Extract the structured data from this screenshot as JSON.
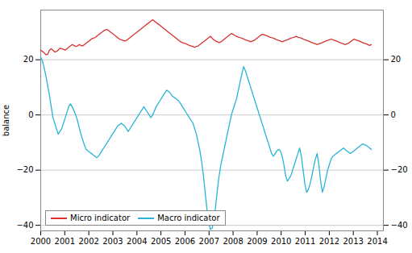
{
  "chart_data": {
    "type": "line",
    "ylabel": "balance",
    "x": [
      2000,
      2000.0728,
      2000.1455,
      2000.2183,
      2000.291,
      2000.3638,
      2000.4365,
      2000.5093,
      2000.582,
      2000.6548,
      2000.7275,
      2000.8003,
      2000.873,
      2000.9458,
      2001.0185,
      2001.0913,
      2001.164,
      2001.2368,
      2001.3095,
      2001.3823,
      2001.455,
      2001.5278,
      2001.6005,
      2001.6733,
      2001.746,
      2001.8188,
      2001.8915,
      2001.9643,
      2002.037,
      2002.1098,
      2002.1825,
      2002.2553,
      2002.328,
      2002.4008,
      2002.4735,
      2002.5463,
      2002.619,
      2002.6918,
      2002.7646,
      2002.8373,
      2002.9101,
      2002.9828,
      2003.0556,
      2003.1283,
      2003.2011,
      2003.2738,
      2003.3466,
      2003.4193,
      2003.4921,
      2003.5648,
      2003.6376,
      2003.7103,
      2003.7831,
      2003.8558,
      2003.9286,
      2004.0013,
      2004.0741,
      2004.1468,
      2004.2196,
      2004.2923,
      2004.3651,
      2004.4378,
      2004.5106,
      2004.5833,
      2004.6561,
      2004.7288,
      2004.8016,
      2004.8743,
      2004.9471,
      2005.0198,
      2005.0926,
      2005.1653,
      2005.2381,
      2005.3108,
      2005.3836,
      2005.4563,
      2005.5291,
      2005.6019,
      2005.6746,
      2005.7474,
      2005.8201,
      2005.8929,
      2005.9656,
      2006.0384,
      2006.1111,
      2006.1839,
      2006.2566,
      2006.3294,
      2006.4021,
      2006.4749,
      2006.5476,
      2006.6204,
      2006.6931,
      2006.7659,
      2006.8386,
      2006.9114,
      2006.9841,
      2007.0569,
      2007.1296,
      2007.2024,
      2007.2751,
      2007.3479,
      2007.4206,
      2007.4934,
      2007.5661,
      2007.6389,
      2007.7116,
      2007.7844,
      2007.8571,
      2007.9299,
      2008.0026,
      2008.0754,
      2008.1481,
      2008.2209,
      2008.2937,
      2008.3664,
      2008.4392,
      2008.5119,
      2008.5847,
      2008.6574,
      2008.7302,
      2008.8029,
      2008.8757,
      2008.9484,
      2009.0212,
      2009.0939,
      2009.1667,
      2009.2394,
      2009.3122,
      2009.3849,
      2009.4577,
      2009.5304,
      2009.6032,
      2009.6759,
      2009.7487,
      2009.8214,
      2009.8942,
      2009.9669,
      2010.0397,
      2010.1124,
      2010.1852,
      2010.2579,
      2010.3307,
      2010.4034,
      2010.4762,
      2010.5489,
      2010.6217,
      2010.6944,
      2010.7672,
      2010.8399,
      2010.9127,
      2010.9854,
      2011.0582,
      2011.131,
      2011.2037,
      2011.2765,
      2011.3492,
      2011.422,
      2011.4947,
      2011.5675,
      2011.6402,
      2011.713,
      2011.7857,
      2011.8585,
      2011.9312,
      2012.004,
      2012.0767,
      2012.1495,
      2012.2222,
      2012.295,
      2012.3677,
      2012.4405,
      2012.5132,
      2012.586,
      2012.6587,
      2012.7315,
      2012.8042,
      2012.877,
      2012.9497,
      2013.0225,
      2013.0952,
      2013.168,
      2013.2407,
      2013.3135,
      2013.3862,
      2013.459,
      2013.5317,
      2013.6045,
      2013.6772,
      2013.75
    ],
    "series": [
      {
        "name": "Micro indicator",
        "color": "#d9322e",
        "values": [
          23.5,
          23.0,
          22.5,
          21.8,
          22.0,
          23.5,
          24.0,
          23.5,
          22.8,
          23.0,
          23.5,
          24.2,
          24.0,
          23.8,
          23.5,
          24.0,
          24.5,
          25.0,
          25.5,
          25.2,
          24.8,
          25.0,
          25.5,
          25.2,
          25.0,
          25.5,
          26.0,
          26.5,
          27.0,
          27.5,
          27.8,
          28.0,
          28.5,
          29.0,
          29.5,
          30.0,
          30.5,
          30.8,
          31.0,
          30.5,
          30.0,
          29.5,
          29.0,
          28.5,
          28.0,
          27.5,
          27.2,
          27.0,
          26.8,
          27.0,
          27.5,
          28.0,
          28.5,
          29.0,
          29.5,
          30.0,
          30.5,
          31.0,
          31.5,
          32.0,
          32.5,
          33.0,
          33.5,
          34.0,
          34.5,
          34.0,
          33.5,
          33.0,
          32.5,
          32.0,
          31.5,
          31.0,
          30.5,
          30.0,
          29.5,
          29.0,
          28.5,
          28.0,
          27.5,
          27.0,
          26.5,
          26.2,
          26.0,
          25.8,
          25.5,
          25.2,
          25.0,
          24.8,
          24.5,
          24.8,
          25.0,
          25.5,
          26.0,
          26.5,
          27.0,
          27.5,
          28.0,
          28.5,
          27.8,
          27.2,
          26.8,
          26.5,
          26.2,
          26.5,
          27.0,
          27.5,
          28.0,
          28.5,
          29.0,
          29.5,
          29.2,
          28.8,
          28.5,
          28.2,
          28.0,
          27.8,
          27.5,
          27.2,
          27.0,
          26.8,
          26.5,
          26.8,
          27.0,
          27.5,
          28.0,
          28.5,
          29.0,
          29.2,
          29.0,
          28.8,
          28.5,
          28.2,
          28.0,
          27.8,
          27.5,
          27.2,
          27.0,
          26.8,
          26.5,
          26.8,
          27.0,
          27.2,
          27.5,
          27.8,
          28.0,
          28.2,
          28.5,
          28.2,
          28.0,
          27.8,
          27.5,
          27.2,
          27.0,
          26.8,
          26.5,
          26.2,
          26.0,
          25.8,
          25.5,
          25.8,
          26.0,
          26.2,
          26.5,
          26.8,
          27.0,
          27.2,
          27.5,
          27.2,
          27.0,
          26.8,
          26.5,
          26.2,
          26.0,
          25.8,
          25.5,
          25.8,
          26.0,
          26.5,
          27.0,
          27.5,
          27.2,
          27.0,
          26.8,
          26.5,
          26.2,
          26.0,
          25.8,
          25.5,
          25.2,
          25.5
        ]
      },
      {
        "name": "Macro indicator",
        "color": "#28b4d9",
        "values": [
          21.0,
          19.5,
          17.0,
          14.0,
          10.5,
          7.0,
          3.0,
          -1.0,
          -3.0,
          -5.0,
          -7.0,
          -6.0,
          -5.0,
          -3.0,
          -1.0,
          1.0,
          3.0,
          4.0,
          3.0,
          1.5,
          0.0,
          -2.0,
          -4.5,
          -7.0,
          -9.0,
          -11.0,
          -12.5,
          -13.0,
          -13.5,
          -14.0,
          -14.5,
          -15.0,
          -15.5,
          -15.0,
          -14.0,
          -13.0,
          -12.0,
          -11.0,
          -10.0,
          -9.0,
          -8.0,
          -7.0,
          -6.0,
          -5.0,
          -4.0,
          -3.5,
          -3.0,
          -3.5,
          -4.0,
          -5.0,
          -6.0,
          -5.0,
          -4.0,
          -3.0,
          -2.0,
          -1.0,
          0.0,
          1.0,
          2.0,
          3.0,
          2.0,
          1.0,
          0.0,
          -1.0,
          0.0,
          1.5,
          3.0,
          4.0,
          5.0,
          6.0,
          7.0,
          8.0,
          9.0,
          8.5,
          8.0,
          7.0,
          6.5,
          6.0,
          5.5,
          5.0,
          4.0,
          3.0,
          2.0,
          1.0,
          0.0,
          -1.0,
          -2.0,
          -3.0,
          -5.0,
          -7.0,
          -10.0,
          -13.0,
          -17.0,
          -22.0,
          -28.0,
          -34.0,
          -39.0,
          -41.5,
          -41.0,
          -38.0,
          -33.0,
          -27.0,
          -22.0,
          -18.0,
          -15.0,
          -12.0,
          -9.0,
          -6.0,
          -3.0,
          0.0,
          2.0,
          4.0,
          6.0,
          9.0,
          12.0,
          15.0,
          17.5,
          16.0,
          14.0,
          12.0,
          10.0,
          8.0,
          6.0,
          4.0,
          2.0,
          0.0,
          -2.0,
          -4.0,
          -6.0,
          -8.0,
          -10.0,
          -12.0,
          -14.0,
          -15.0,
          -14.0,
          -13.0,
          -12.5,
          -13.0,
          -15.0,
          -18.0,
          -22.0,
          -24.0,
          -23.0,
          -22.0,
          -20.0,
          -18.0,
          -16.0,
          -14.0,
          -12.0,
          -15.0,
          -20.0,
          -25.0,
          -28.0,
          -27.0,
          -25.0,
          -22.0,
          -19.0,
          -16.0,
          -14.0,
          -18.0,
          -24.0,
          -28.0,
          -26.0,
          -23.0,
          -20.0,
          -18.0,
          -16.0,
          -15.0,
          -14.5,
          -14.0,
          -13.5,
          -13.0,
          -12.5,
          -12.0,
          -12.5,
          -13.0,
          -13.5,
          -14.0,
          -13.5,
          -13.0,
          -12.5,
          -12.0,
          -11.5,
          -11.0,
          -10.5,
          -10.8,
          -11.0,
          -11.5,
          -12.0,
          -12.5
        ]
      }
    ],
    "xlim": [
      2000.0,
      2014.25
    ],
    "xticks": [
      2000,
      2001,
      2002,
      2003,
      2004,
      2005,
      2006,
      2007,
      2008,
      2009,
      2010,
      2011,
      2012,
      2013,
      2014
    ],
    "ylim": [
      -42,
      38
    ],
    "yticks": [
      -40,
      -20,
      0,
      20
    ],
    "y2lim": [
      -42,
      38
    ],
    "y2ticks": [
      -40,
      -20,
      0,
      20
    ],
    "grid": true,
    "legend": "lower left"
  }
}
